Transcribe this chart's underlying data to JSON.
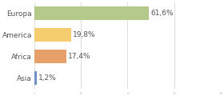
{
  "categories": [
    "Europa",
    "America",
    "Africa",
    "Asia"
  ],
  "values": [
    61.6,
    19.8,
    17.4,
    1.2
  ],
  "labels": [
    "61,6%",
    "19,8%",
    "17,4%",
    "1,2%"
  ],
  "bar_colors": [
    "#b5c98a",
    "#f5cc6e",
    "#e8a06a",
    "#7090c8"
  ],
  "background_color": "#ffffff",
  "plot_bg_color": "#ffffff",
  "xlim": [
    0,
    100
  ],
  "label_fontsize": 6.5,
  "tick_fontsize": 6.5,
  "bar_height": 0.65,
  "grid_color": "#d0d0d0",
  "text_color": "#555555",
  "label_text_color": "#555555"
}
